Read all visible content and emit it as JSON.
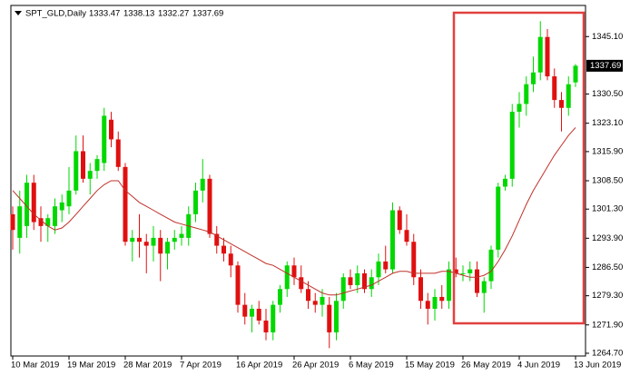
{
  "chart_data": {
    "type": "candlestick",
    "title": "SPT_GLD,Daily",
    "up_color": "#00d800",
    "down_color": "#e01010",
    "ma_color": "#c0302a",
    "ylim": [
      1264.0,
      1353.0
    ],
    "yticks": [
      {
        "value": 1345.1,
        "label": "1345.10"
      },
      {
        "value": 1330.5,
        "label": "1330.50"
      },
      {
        "value": 1323.1,
        "label": "1323.10"
      },
      {
        "value": 1315.9,
        "label": "1315.90"
      },
      {
        "value": 1308.5,
        "label": "1308.50"
      },
      {
        "value": 1301.3,
        "label": "1301.30"
      },
      {
        "value": 1293.9,
        "label": "1293.90"
      },
      {
        "value": 1286.5,
        "label": "1286.50"
      },
      {
        "value": 1279.3,
        "label": "1279.30"
      },
      {
        "value": 1271.9,
        "label": "1271.90"
      },
      {
        "value": 1264.7,
        "label": "1264.70"
      }
    ],
    "categories": [
      "10 Mar 2019",
      null,
      null,
      null,
      null,
      null,
      null,
      null,
      "19 Mar 2019",
      null,
      null,
      null,
      null,
      null,
      null,
      null,
      "28 Mar 2019",
      null,
      null,
      null,
      null,
      null,
      null,
      null,
      "7 Apr 2019",
      null,
      null,
      null,
      null,
      null,
      null,
      null,
      "16 Apr 2019",
      null,
      null,
      null,
      null,
      null,
      null,
      null,
      "26 Apr 2019",
      null,
      null,
      null,
      null,
      null,
      null,
      null,
      "6 May 2019",
      null,
      null,
      null,
      null,
      null,
      null,
      null,
      "15 May 2019",
      null,
      null,
      null,
      null,
      null,
      null,
      null,
      "26 May 2019",
      null,
      null,
      null,
      null,
      null,
      null,
      null,
      "4 Jun 2019",
      null,
      null,
      null,
      null,
      null,
      null,
      null,
      "13 Jun 2019"
    ],
    "ohlc": [
      [
        1300,
        1302,
        1291,
        1296
      ],
      [
        1294,
        1306,
        1290,
        1302
      ],
      [
        1297,
        1310,
        1294,
        1308
      ],
      [
        1308,
        1310,
        1296,
        1298
      ],
      [
        1299,
        1302,
        1293,
        1297
      ],
      [
        1297,
        1300,
        1293,
        1299
      ],
      [
        1297,
        1304,
        1295,
        1302
      ],
      [
        1301,
        1305,
        1298,
        1303
      ],
      [
        1302,
        1312,
        1300,
        1306
      ],
      [
        1306,
        1320,
        1305,
        1316
      ],
      [
        1316,
        1320,
        1308,
        1309
      ],
      [
        1309,
        1313,
        1305,
        1311
      ],
      [
        1311,
        1315,
        1309,
        1314
      ],
      [
        1313,
        1327,
        1311,
        1325
      ],
      [
        1324,
        1326,
        1317,
        1319
      ],
      [
        1319,
        1321,
        1311,
        1312
      ],
      [
        1312,
        1313,
        1292,
        1293
      ],
      [
        1293,
        1296,
        1288,
        1294
      ],
      [
        1294,
        1300,
        1289,
        1293
      ],
      [
        1293,
        1295,
        1285,
        1292
      ],
      [
        1292,
        1297,
        1288,
        1294
      ],
      [
        1294,
        1296,
        1283,
        1290
      ],
      [
        1290,
        1294,
        1286,
        1293
      ],
      [
        1293,
        1296,
        1291,
        1294
      ],
      [
        1294,
        1297,
        1292,
        1295
      ],
      [
        1294,
        1302,
        1292,
        1300
      ],
      [
        1300,
        1308,
        1298,
        1306
      ],
      [
        1306,
        1314,
        1303,
        1309
      ],
      [
        1309,
        1310,
        1294,
        1295
      ],
      [
        1295,
        1297,
        1290,
        1292
      ],
      [
        1292,
        1294,
        1288,
        1290
      ],
      [
        1290,
        1292,
        1284,
        1287
      ],
      [
        1287,
        1288,
        1275,
        1277
      ],
      [
        1277,
        1280,
        1272,
        1274
      ],
      [
        1274,
        1277,
        1270,
        1276
      ],
      [
        1276,
        1278,
        1272,
        1273
      ],
      [
        1273,
        1276,
        1268,
        1270
      ],
      [
        1270,
        1278,
        1268,
        1277
      ],
      [
        1277,
        1282,
        1275,
        1281
      ],
      [
        1281,
        1288,
        1279,
        1287
      ],
      [
        1287,
        1289,
        1282,
        1284
      ],
      [
        1284,
        1287,
        1280,
        1281
      ],
      [
        1281,
        1283,
        1276,
        1278
      ],
      [
        1278,
        1280,
        1275,
        1277
      ],
      [
        1277,
        1281,
        1274,
        1279
      ],
      [
        1277,
        1279,
        1266,
        1270
      ],
      [
        1270,
        1280,
        1268,
        1278
      ],
      [
        1278,
        1285,
        1276,
        1284
      ],
      [
        1284,
        1286,
        1281,
        1282
      ],
      [
        1282,
        1287,
        1280,
        1285
      ],
      [
        1285,
        1286,
        1280,
        1281
      ],
      [
        1281,
        1286,
        1279,
        1284
      ],
      [
        1284,
        1290,
        1282,
        1288
      ],
      [
        1288,
        1292,
        1285,
        1286
      ],
      [
        1286,
        1303,
        1285,
        1301
      ],
      [
        1301,
        1302,
        1295,
        1296
      ],
      [
        1296,
        1300,
        1292,
        1293
      ],
      [
        1293,
        1295,
        1282,
        1284
      ],
      [
        1284,
        1286,
        1276,
        1278
      ],
      [
        1278,
        1280,
        1272,
        1276
      ],
      [
        1276,
        1281,
        1273,
        1279
      ],
      [
        1279,
        1282,
        1276,
        1278
      ],
      [
        1278,
        1288,
        1276,
        1286
      ],
      [
        1286,
        1289,
        1284,
        1285
      ],
      [
        1285,
        1287,
        1283,
        1285
      ],
      [
        1285,
        1288,
        1283,
        1286
      ],
      [
        1286,
        1288,
        1279,
        1280
      ],
      [
        1280,
        1284,
        1275,
        1283
      ],
      [
        1283,
        1292,
        1281,
        1291
      ],
      [
        1291,
        1308,
        1289,
        1307
      ],
      [
        1307,
        1310,
        1306,
        1309
      ],
      [
        1309,
        1328,
        1307,
        1326
      ],
      [
        1326,
        1331,
        1322,
        1328
      ],
      [
        1328,
        1335,
        1325,
        1333
      ],
      [
        1333,
        1340,
        1331,
        1336
      ],
      [
        1336,
        1349,
        1334,
        1345
      ],
      [
        1345,
        1347,
        1334,
        1335
      ],
      [
        1335,
        1337,
        1327,
        1329
      ],
      [
        1329,
        1331,
        1321,
        1327
      ],
      [
        1327,
        1335,
        1325,
        1333
      ],
      [
        1333.47,
        1338.13,
        1332.27,
        1337.69
      ]
    ],
    "ma": [
      1306,
      1304,
      1302,
      1300,
      1298.5,
      1297,
      1296,
      1296.5,
      1298,
      1300,
      1302,
      1304,
      1306,
      1307.5,
      1308.5,
      1308.5,
      1306,
      1304.5,
      1303,
      1302,
      1301,
      1300,
      1299,
      1298,
      1297.5,
      1297,
      1296.5,
      1296,
      1295.5,
      1294.5,
      1293.5,
      1292.5,
      1291.5,
      1290.5,
      1289.5,
      1288.5,
      1287.5,
      1287,
      1286,
      1285,
      1284,
      1283,
      1282,
      1281,
      1280,
      1279.5,
      1279.5,
      1280,
      1280.5,
      1281,
      1281.5,
      1282,
      1283,
      1284,
      1285,
      1285.5,
      1285.5,
      1285,
      1285,
      1285,
      1285,
      1285.5,
      1285.5,
      1285,
      1284.5,
      1284,
      1284,
      1284.5,
      1285.5,
      1288,
      1291,
      1294.5,
      1298.5,
      1302.5,
      1306,
      1309,
      1312,
      1315,
      1317.5,
      1320,
      1322
    ]
  }
}
